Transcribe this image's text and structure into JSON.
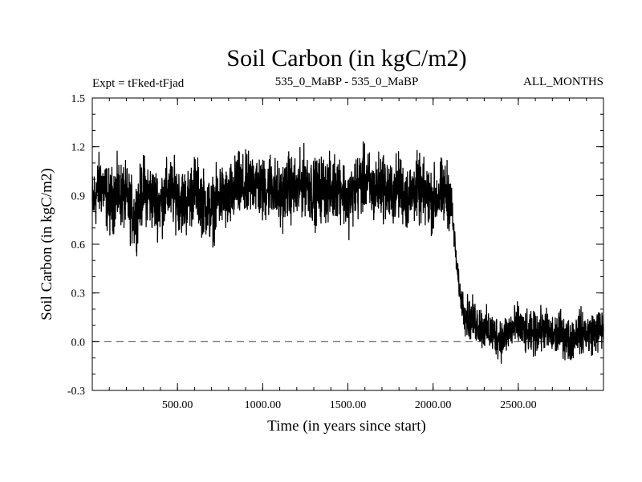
{
  "chart_data": {
    "type": "line",
    "title": "Soil Carbon (in kgC/m2)",
    "header_left": "Expt = tFked-tFjad",
    "header_center": "535_0_MaBP - 535_0_MaBP",
    "header_right": "ALL_MONTHS",
    "xlabel": "Time (in years since start)",
    "ylabel": "Soil Carbon (in kgC/m2)",
    "xlim": [
      0,
      3000
    ],
    "ylim": [
      -0.3,
      1.5
    ],
    "xticks": [
      500,
      1000,
      1500,
      2000,
      2500
    ],
    "xtick_labels": [
      "500.00",
      "1000.00",
      "1500.00",
      "2000.00",
      "2500.00"
    ],
    "yticks": [
      -0.3,
      0.0,
      0.3,
      0.6,
      0.9,
      1.2,
      1.5
    ],
    "ytick_labels": [
      "-0.3",
      "0.0",
      "0.3",
      "0.6",
      "0.9",
      "1.2",
      "1.5"
    ],
    "reference_line": 0.0,
    "grid": false,
    "series": [
      {
        "x": [
          0,
          50,
          100,
          150,
          200,
          250,
          300,
          350,
          400,
          450,
          500,
          550,
          600,
          650,
          700,
          750,
          800,
          850,
          900,
          950,
          1000,
          1050,
          1100,
          1150,
          1200,
          1250,
          1300,
          1350,
          1400,
          1450,
          1500,
          1550,
          1600,
          1650,
          1700,
          1750,
          1800,
          1850,
          1900,
          1950,
          2000,
          2050,
          2100,
          2120,
          2140,
          2160,
          2180,
          2200,
          2250,
          2300,
          2350,
          2400,
          2450,
          2500,
          2550,
          2600,
          2650,
          2700,
          2750,
          2800,
          2850,
          2900,
          2950,
          3000
        ],
        "y": [
          0.85,
          0.98,
          0.85,
          0.92,
          0.88,
          0.76,
          0.95,
          0.88,
          0.85,
          0.93,
          0.9,
          0.85,
          0.95,
          0.86,
          0.8,
          0.9,
          0.87,
          0.96,
          0.94,
          1.0,
          0.92,
          0.98,
          0.88,
          0.96,
          0.92,
          1.0,
          0.91,
          0.95,
          0.93,
          0.98,
          0.86,
          0.95,
          1.0,
          0.92,
          0.98,
          0.9,
          0.96,
          0.88,
          0.95,
          0.9,
          0.87,
          0.92,
          0.9,
          0.7,
          0.45,
          0.28,
          0.2,
          0.15,
          0.12,
          0.08,
          0.05,
          0.02,
          0.07,
          0.1,
          0.04,
          0.05,
          0.08,
          0.03,
          0.06,
          0.0,
          0.07,
          0.05,
          0.06,
          0.08
        ],
        "variability": [
          0.17,
          0.17,
          0.17,
          0.17,
          0.17,
          0.17,
          0.17,
          0.17,
          0.17,
          0.17,
          0.17,
          0.17,
          0.17,
          0.17,
          0.17,
          0.17,
          0.17,
          0.17,
          0.17,
          0.17,
          0.17,
          0.17,
          0.17,
          0.17,
          0.17,
          0.17,
          0.17,
          0.17,
          0.17,
          0.17,
          0.17,
          0.17,
          0.17,
          0.17,
          0.17,
          0.17,
          0.17,
          0.17,
          0.17,
          0.17,
          0.17,
          0.17,
          0.17,
          0.08,
          0.06,
          0.06,
          0.1,
          0.11,
          0.11,
          0.11,
          0.11,
          0.11,
          0.11,
          0.11,
          0.11,
          0.11,
          0.11,
          0.11,
          0.11,
          0.11,
          0.11,
          0.11,
          0.11,
          0.11
        ]
      }
    ]
  }
}
